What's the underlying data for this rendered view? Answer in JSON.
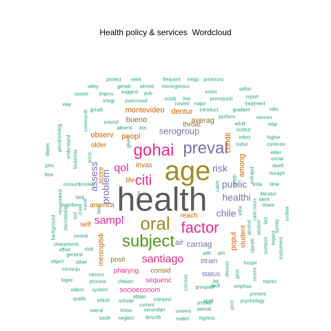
{
  "chart_data": {
    "type": "wordcloud",
    "title": "Health policy & services  Wordcloud",
    "colors": {
      "gray": "#5b5b5b",
      "gold": "#a58a22",
      "orange": "#d35f00",
      "pink": "#e7298a",
      "purple": "#7570b3",
      "green": "#4b9a1a",
      "brown": "#8a6d2a",
      "teal": "#1b9e77"
    },
    "words": [
      {
        "text": "health",
        "size": 48,
        "color": "gray"
      },
      {
        "text": "age",
        "size": 40,
        "color": "gold"
      },
      {
        "text": "preval",
        "size": 24,
        "color": "purple"
      },
      {
        "text": "gohai",
        "size": 24,
        "color": "pink"
      },
      {
        "text": "oral",
        "size": 26,
        "color": "gold"
      },
      {
        "text": "subject",
        "size": 24,
        "color": "green"
      },
      {
        "text": "factor",
        "size": 22,
        "color": "pink"
      },
      {
        "text": "citi",
        "size": 20,
        "color": "pink"
      },
      {
        "text": "qol",
        "size": 16,
        "color": "pink"
      },
      {
        "text": "sampl",
        "size": 16,
        "color": "pink"
      },
      {
        "text": "santiago",
        "size": 16,
        "color": "pink"
      },
      {
        "text": "assess",
        "size": 14,
        "color": "purple"
      },
      {
        "text": "problem",
        "size": 14,
        "color": "purple"
      },
      {
        "text": "risk",
        "size": 14,
        "color": "purple"
      },
      {
        "text": "public",
        "size": 14,
        "color": "purple"
      },
      {
        "text": "healthi",
        "size": 14,
        "color": "purple"
      },
      {
        "text": "chile",
        "size": 14,
        "color": "purple"
      },
      {
        "text": "carriag",
        "size": 12,
        "color": "purple"
      },
      {
        "text": "serogroup",
        "size": 13,
        "color": "purple"
      },
      {
        "text": "montevideo",
        "size": 11,
        "color": "orange"
      },
      {
        "text": "dentur",
        "size": 11,
        "color": "orange"
      },
      {
        "text": "bueno",
        "size": 11,
        "color": "brown"
      },
      {
        "text": "averag",
        "size": 11,
        "color": "brown"
      },
      {
        "text": "observ",
        "size": 11,
        "color": "orange"
      },
      {
        "text": "peopl",
        "size": 11,
        "color": "orange"
      },
      {
        "text": "condit",
        "size": 11,
        "color": "orange"
      },
      {
        "text": "among",
        "size": 11,
        "color": "orange"
      },
      {
        "text": "throat",
        "size": 10,
        "color": "brown"
      },
      {
        "text": "score",
        "size": 10,
        "color": "orange"
      },
      {
        "text": "older",
        "size": 10,
        "color": "orange"
      },
      {
        "text": "invas",
        "size": 10,
        "color": "orange"
      },
      {
        "text": "life",
        "size": 10,
        "color": "orange"
      },
      {
        "text": "america",
        "size": 10,
        "color": "orange"
      },
      {
        "text": "self",
        "size": 10,
        "color": "orange"
      },
      {
        "text": "meningitidi",
        "size": 10,
        "color": "orange"
      },
      {
        "text": "reach",
        "size": 10,
        "color": "orange"
      },
      {
        "text": "popul",
        "size": 11,
        "color": "orange"
      },
      {
        "text": "student",
        "size": 10,
        "color": "orange"
      },
      {
        "text": "air",
        "size": 11,
        "color": "purple"
      },
      {
        "text": "posit",
        "size": 10,
        "color": "brown"
      },
      {
        "text": "consid",
        "size": 10,
        "color": "brown"
      },
      {
        "text": "pharyng",
        "size": 10,
        "color": "pink"
      },
      {
        "text": "sequenc",
        "size": 10,
        "color": "pink"
      },
      {
        "text": "socioeconom",
        "size": 10,
        "color": "pink"
      },
      {
        "text": "strain",
        "size": 10,
        "color": "purple"
      },
      {
        "text": "status",
        "size": 10,
        "color": "purple"
      },
      {
        "text": "qualiti",
        "size": 7,
        "color": "teal"
      },
      {
        "text": "scholar",
        "size": 7,
        "color": "teal"
      },
      {
        "text": "interpret",
        "size": 7,
        "color": "teal"
      },
      {
        "text": "understand",
        "size": 7,
        "color": "teal"
      },
      {
        "text": "psychology",
        "size": 7,
        "color": "teal"
      },
      {
        "text": "protect",
        "size": 7,
        "color": "teal"
      },
      {
        "text": "need",
        "size": 7,
        "color": "teal"
      },
      {
        "text": "frequent",
        "size": 7,
        "color": "teal"
      },
      {
        "text": "inequ",
        "size": 7,
        "color": "teal"
      },
      {
        "text": "pronounc",
        "size": 7,
        "color": "teal"
      },
      {
        "text": "wiley",
        "size": 7,
        "color": "teal"
      },
      {
        "text": "geriatr",
        "size": 7,
        "color": "teal"
      },
      {
        "text": "almost",
        "size": 7,
        "color": "teal"
      },
      {
        "text": "meningococc",
        "size": 7,
        "color": "teal"
      },
      {
        "text": "societi",
        "size": 7,
        "color": "teal"
      },
      {
        "text": "improv",
        "size": 7,
        "color": "teal"
      },
      {
        "text": "suggest",
        "size": 7,
        "color": "teal"
      },
      {
        "text": "pub",
        "size": 7,
        "color": "teal"
      },
      {
        "text": "estim",
        "size": 7,
        "color": "teal"
      },
      {
        "text": "within",
        "size": 7,
        "color": "teal"
      },
      {
        "text": "integr",
        "size": 7,
        "color": "teal"
      },
      {
        "text": "overcrowd",
        "size": 7,
        "color": "teal"
      },
      {
        "text": "octob",
        "size": 7,
        "color": "teal"
      },
      {
        "text": "live",
        "size": 7,
        "color": "teal"
      },
      {
        "text": "prerequisit",
        "size": 7,
        "color": "teal"
      },
      {
        "text": "report",
        "size": 7,
        "color": "teal"
      },
      {
        "text": "way",
        "size": 7,
        "color": "teal"
      },
      {
        "text": "greaiti",
        "size": 7,
        "color": "teal"
      },
      {
        "text": "countri",
        "size": 7,
        "color": "teal"
      },
      {
        "text": "major",
        "size": 7,
        "color": "teal"
      },
      {
        "text": "treatment",
        "size": 7,
        "color": "teal"
      },
      {
        "text": "introduct",
        "size": 7,
        "color": "teal"
      },
      {
        "text": "gradient",
        "size": 7,
        "color": "teal"
      },
      {
        "text": "valu",
        "size": 7,
        "color": "teal"
      },
      {
        "text": "extend",
        "size": 7,
        "color": "teal"
      },
      {
        "text": "perform",
        "size": 7,
        "color": "teal"
      },
      {
        "text": "women",
        "size": 7,
        "color": "teal"
      },
      {
        "text": "absenc",
        "size": 7,
        "color": "teal"
      },
      {
        "text": "ass",
        "size": 7,
        "color": "teal"
      },
      {
        "text": "adult",
        "size": 7,
        "color": "teal"
      },
      {
        "text": "relat",
        "size": 7,
        "color": "teal"
      },
      {
        "text": "institut",
        "size": 7,
        "color": "teal"
      },
      {
        "text": "infect",
        "size": 7,
        "color": "teal"
      },
      {
        "text": "higher",
        "size": 7,
        "color": "teal"
      },
      {
        "text": "cultur",
        "size": 7,
        "color": "teal"
      },
      {
        "text": "common",
        "size": 7,
        "color": "teal"
      },
      {
        "text": "elder",
        "size": 7,
        "color": "teal"
      },
      {
        "text": "social",
        "size": 7,
        "color": "teal"
      },
      {
        "text": "dwell",
        "size": 7,
        "color": "teal"
      },
      {
        "text": "luicapit",
        "size": 7,
        "color": "teal"
      },
      {
        "text": "time",
        "size": 7,
        "color": "teal"
      },
      {
        "text": "esta",
        "size": 7,
        "color": "teal"
      },
      {
        "text": "literatur",
        "size": 7,
        "color": "teal"
      },
      {
        "text": "ident",
        "size": 7,
        "color": "teal"
      },
      {
        "text": "share",
        "size": 7,
        "color": "teal"
      },
      {
        "text": "survey",
        "size": 7,
        "color": "teal"
      },
      {
        "text": "undew",
        "size": 7,
        "color": "teal"
      },
      {
        "text": "instrument",
        "size": 7,
        "color": "teal"
      },
      {
        "text": "expect",
        "size": 7,
        "color": "teal"
      },
      {
        "text": "someon",
        "size": 7,
        "color": "teal"
      },
      {
        "text": "hospit",
        "size": 7,
        "color": "teal"
      },
      {
        "text": "repres",
        "size": 7,
        "color": "teal"
      },
      {
        "text": "prevent",
        "size": 7,
        "color": "teal"
      },
      {
        "text": "emphas",
        "size": 7,
        "color": "teal"
      },
      {
        "text": "lack",
        "size": 7,
        "color": "teal"
      },
      {
        "text": "smoker",
        "size": 7,
        "color": "teal"
      },
      {
        "text": "groupabl",
        "size": 7,
        "color": "teal"
      },
      {
        "text": "ltd",
        "size": 7,
        "color": "teal"
      },
      {
        "text": "period",
        "size": 7,
        "color": "teal"
      },
      {
        "text": "appli",
        "size": 7,
        "color": "teal"
      },
      {
        "text": "regress",
        "size": 7,
        "color": "teal"
      },
      {
        "text": "univers",
        "size": 7,
        "color": "teal"
      },
      {
        "text": "materi",
        "size": 7,
        "color": "teal"
      },
      {
        "text": "secondari",
        "size": 7,
        "color": "teal"
      },
      {
        "text": "describ",
        "size": 7,
        "color": "teal"
      },
      {
        "text": "know",
        "size": 7,
        "color": "teal"
      },
      {
        "text": "neglect",
        "size": 7,
        "color": "teal"
      },
      {
        "text": "south",
        "size": 7,
        "color": "teal"
      },
      {
        "text": "overal",
        "size": 7,
        "color": "teal"
      },
      {
        "text": "obtain",
        "size": 7,
        "color": "teal"
      },
      {
        "text": "current",
        "size": 7,
        "color": "teal"
      },
      {
        "text": "oldest",
        "size": 7,
        "color": "teal"
      },
      {
        "text": "system",
        "size": 7,
        "color": "teal"
      },
      {
        "text": "adjust",
        "size": 7,
        "color": "teal"
      },
      {
        "text": "chilean",
        "size": 7,
        "color": "teal"
      },
      {
        "text": "process",
        "size": 7,
        "color": "teal"
      },
      {
        "text": "necess",
        "size": 7,
        "color": "teal"
      },
      {
        "text": "logist",
        "size": 7,
        "color": "teal"
      },
      {
        "text": "consequ",
        "size": 7,
        "color": "teal"
      },
      {
        "text": "object",
        "size": 7,
        "color": "teal"
      },
      {
        "text": "other",
        "size": 7,
        "color": "teal"
      },
      {
        "text": "general",
        "size": 7,
        "color": "teal"
      },
      {
        "text": "characterist",
        "size": 7,
        "color": "teal"
      },
      {
        "text": "effort",
        "size": 7,
        "color": "teal"
      },
      {
        "text": "club",
        "size": 7,
        "color": "teal"
      },
      {
        "text": "central",
        "size": 7,
        "color": "teal"
      },
      {
        "text": "background",
        "size": 7,
        "color": "teal"
      },
      {
        "text": "microbiolog",
        "size": 7,
        "color": "teal"
      },
      {
        "text": "nesseria",
        "size": 7,
        "color": "teal"
      },
      {
        "text": "rest",
        "size": 7,
        "color": "teal"
      },
      {
        "text": "member",
        "size": 7,
        "color": "teal"
      },
      {
        "text": "bed",
        "size": 7,
        "color": "teal"
      },
      {
        "text": "lifetim",
        "size": 7,
        "color": "teal"
      },
      {
        "text": "john",
        "size": 7,
        "color": "teal"
      },
      {
        "text": "less",
        "size": 7,
        "color": "teal"
      },
      {
        "text": "gerodontolog",
        "size": 7,
        "color": "teal"
      },
      {
        "text": "consum",
        "size": 7,
        "color": "teal"
      },
      {
        "text": "kmown",
        "size": 7,
        "color": "teal"
      },
      {
        "text": "enrol",
        "size": 7,
        "color": "teal"
      },
      {
        "text": "communiti",
        "size": 7,
        "color": "teal"
      },
      {
        "text": "given",
        "size": 7,
        "color": "teal"
      },
      {
        "text": "non",
        "size": 7,
        "color": "teal"
      },
      {
        "text": "anoth",
        "size": 7,
        "color": "teal"
      },
      {
        "text": "calvo",
        "size": 7,
        "color": "teal"
      },
      {
        "text": "extrapol",
        "size": 7,
        "color": "teal"
      },
      {
        "text": "adh",
        "size": 7,
        "color": "teal"
      },
      {
        "text": "aim",
        "size": 7,
        "color": "teal"
      },
      {
        "text": "concius",
        "size": 7,
        "color": "teal"
      },
      {
        "text": "poor",
        "size": 7,
        "color": "teal"
      },
      {
        "text": "discuss",
        "size": 7,
        "color": "teal"
      },
      {
        "text": "prior",
        "size": 7,
        "color": "teal"
      },
      {
        "text": "recent",
        "size": 7,
        "color": "teal"
      },
      {
        "text": "alcohol",
        "size": 7,
        "color": "teal"
      },
      {
        "text": "cours",
        "size": 7,
        "color": "teal"
      },
      {
        "text": "last",
        "size": 7,
        "color": "teal"
      },
      {
        "text": "care",
        "size": 7,
        "color": "teal"
      },
      {
        "text": "section",
        "size": 7,
        "color": "teal"
      },
      {
        "text": "ethic",
        "size": 7,
        "color": "teal"
      },
      {
        "text": "identifi",
        "size": 7,
        "color": "teal"
      },
      {
        "text": "leukemia",
        "size": 7,
        "color": "teal"
      },
      {
        "text": "tiem",
        "size": 7,
        "color": "teal"
      },
      {
        "text": "nasal",
        "size": 7,
        "color": "teal"
      },
      {
        "text": "cross",
        "size": 7,
        "color": "teal"
      },
      {
        "text": "isol",
        "size": 7,
        "color": "teal"
      }
    ]
  }
}
